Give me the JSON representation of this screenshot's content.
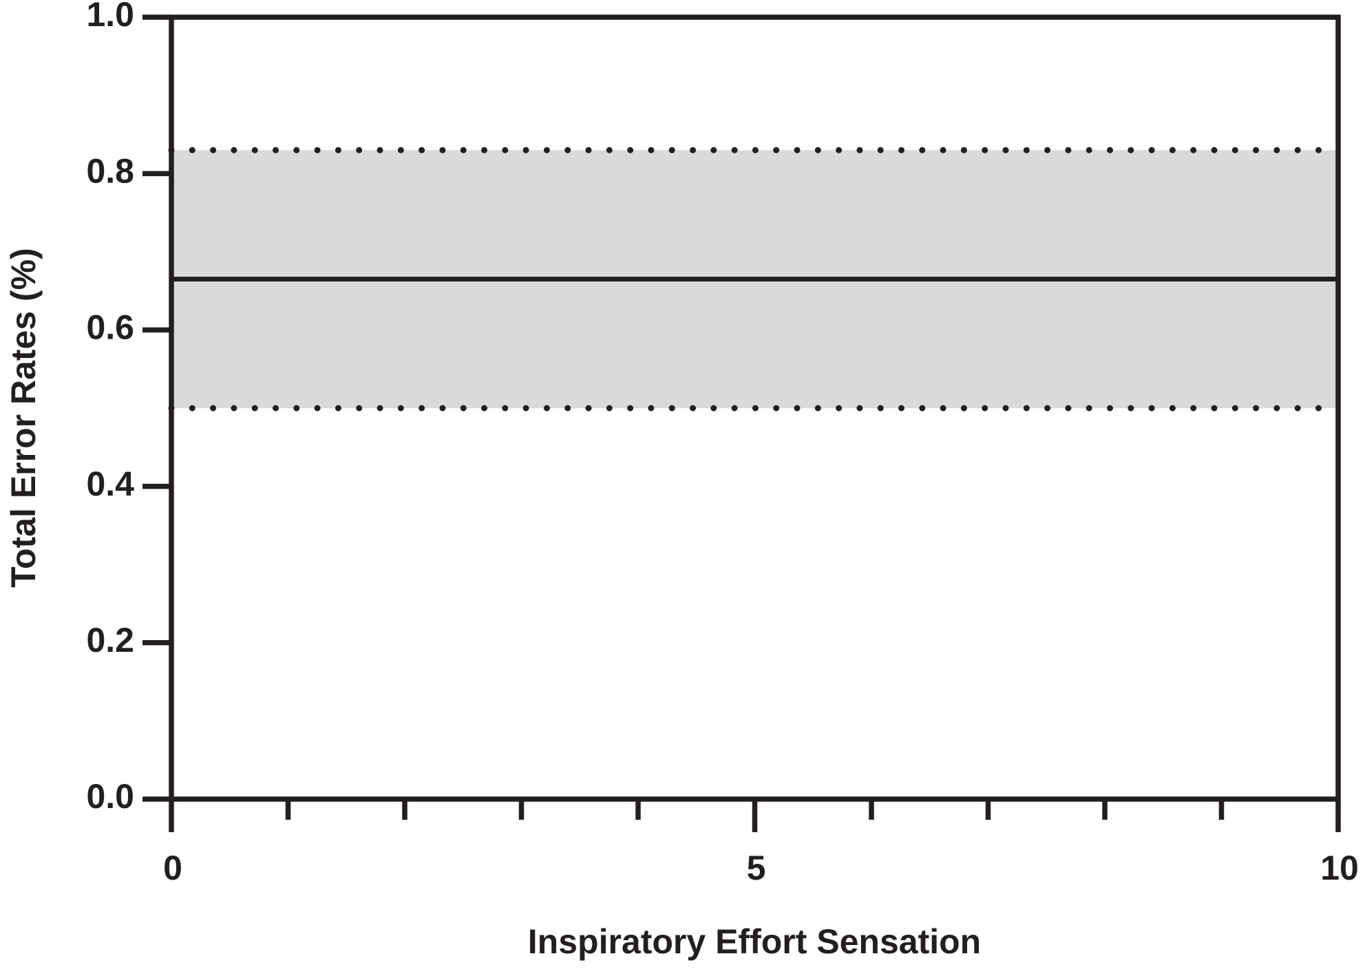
{
  "chart_data": {
    "type": "line",
    "x_label": "Inspiratory Effort Sensation",
    "y_label": "Total Error Rates (%)",
    "x": [
      0,
      10
    ],
    "line": {
      "values": [
        0.665,
        0.665
      ],
      "color": "#231f20"
    },
    "band": {
      "lower": [
        0.5,
        0.5
      ],
      "upper": [
        0.83,
        0.83
      ],
      "color": "#d9dadc",
      "edge_style": "dotted"
    },
    "xlim": [
      0,
      10
    ],
    "ylim": [
      0,
      1.0
    ],
    "xticks": [
      0,
      5,
      10
    ],
    "xminor_ticks": [
      1,
      2,
      3,
      4,
      6,
      7,
      8,
      9
    ],
    "yticks": [
      {
        "value": 0,
        "label": "0.0"
      },
      0.2,
      0.4,
      0.6,
      0.8,
      {
        "value": 1.0,
        "label": "1.0"
      }
    ],
    "grid": false
  }
}
